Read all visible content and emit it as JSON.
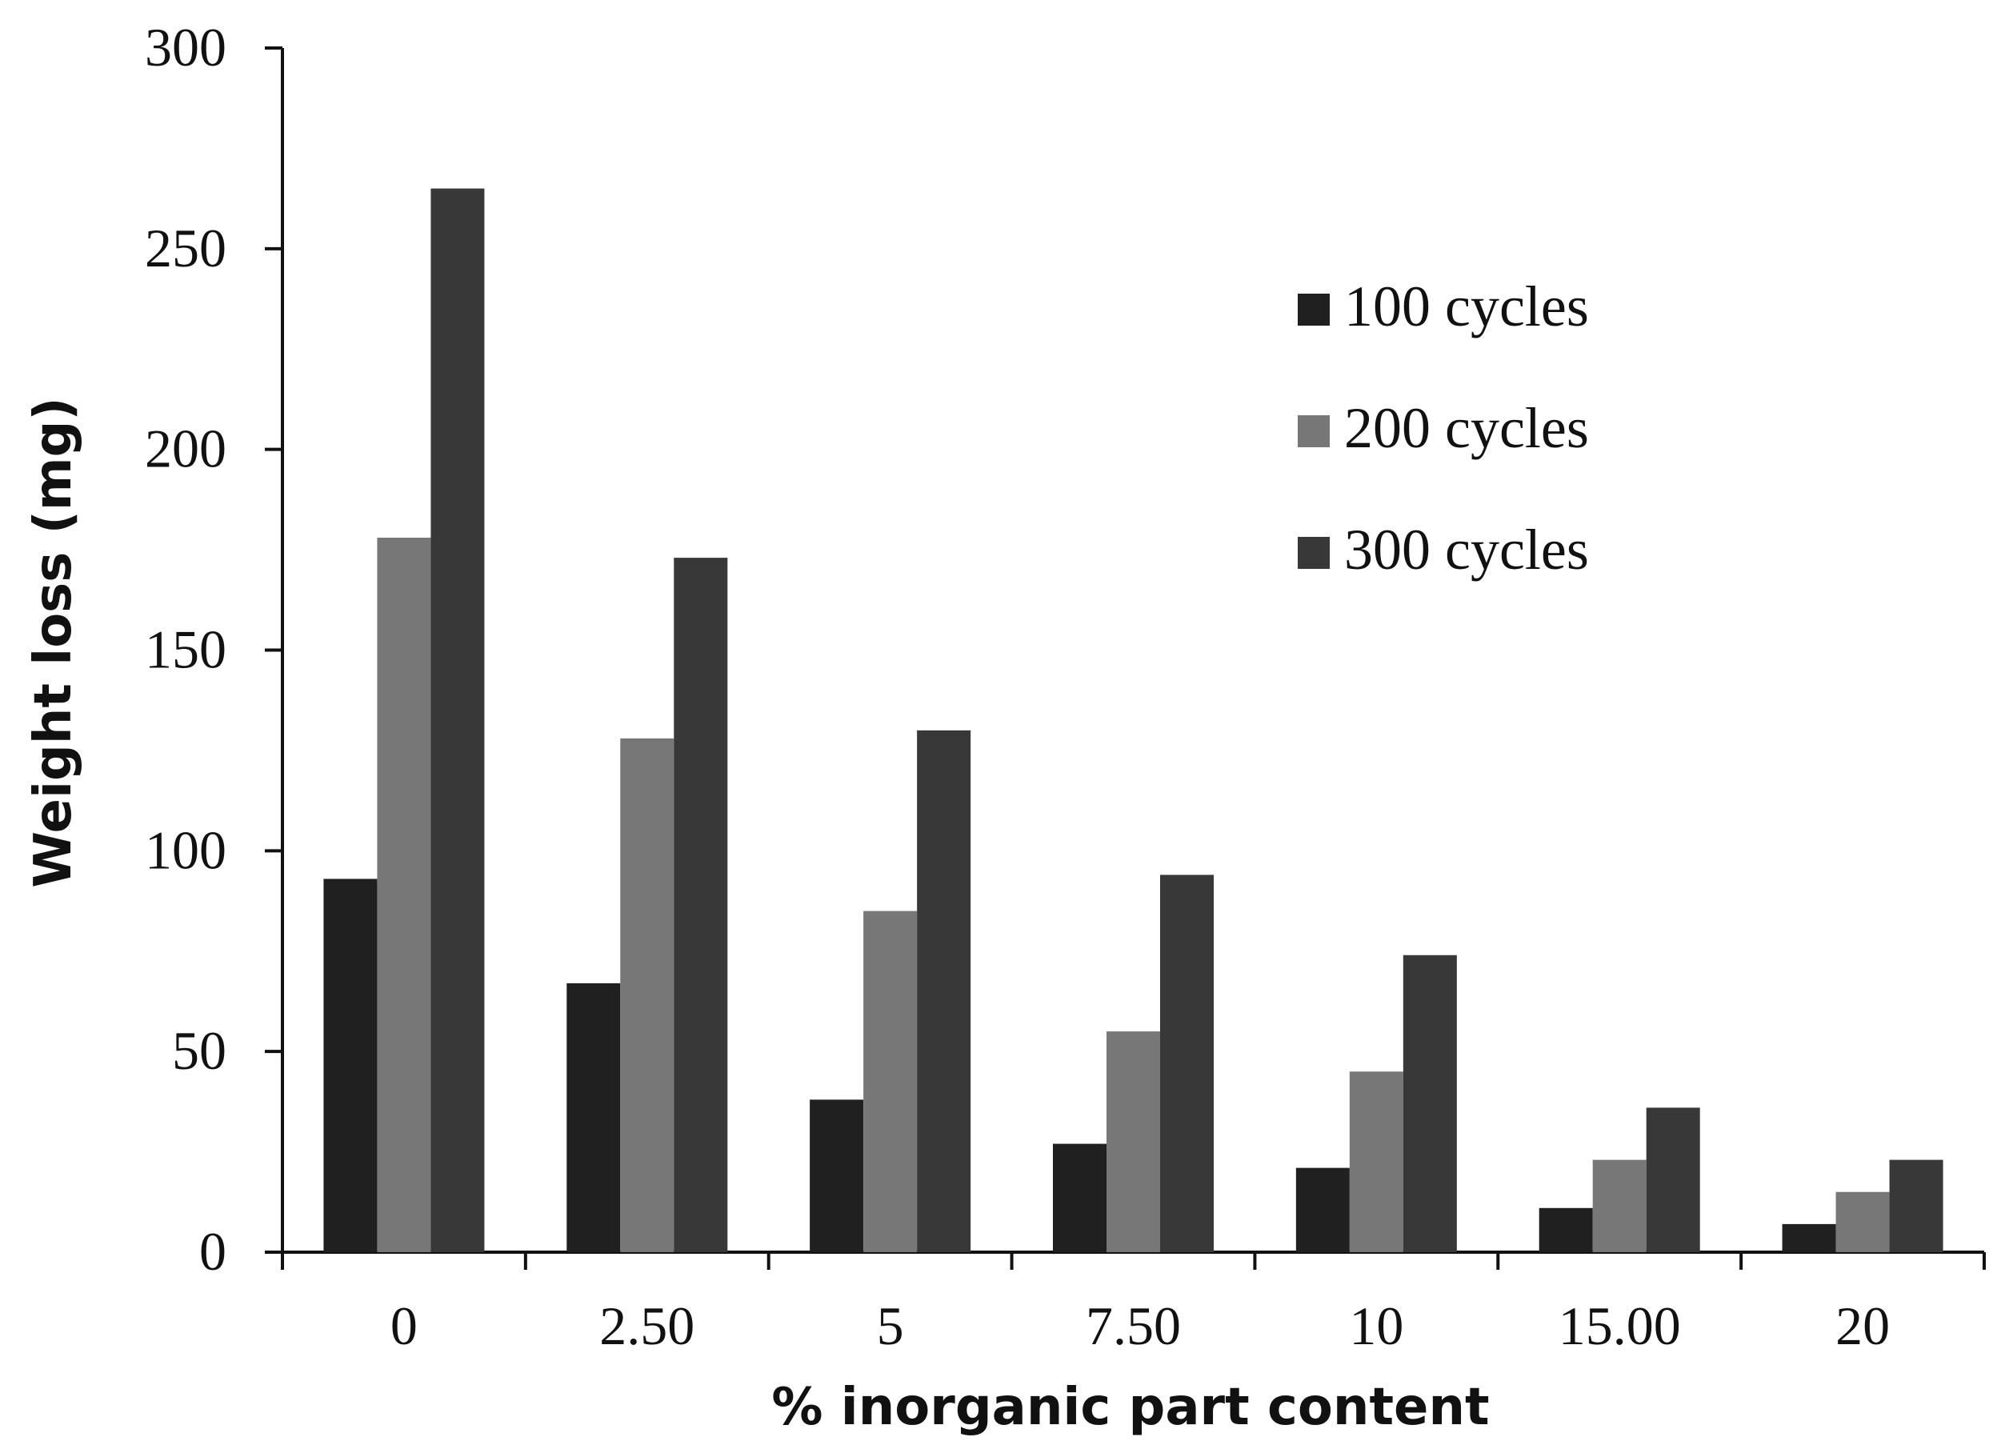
{
  "chart_data": {
    "type": "bar",
    "title": "",
    "xlabel": "% inorganic part content",
    "ylabel": "Weight loss (mg)",
    "categories": [
      "0",
      "2.50",
      "5",
      "7.50",
      "10",
      "15.00",
      "20"
    ],
    "y_ticks": [
      "0",
      "50",
      "100",
      "150",
      "200",
      "250",
      "300"
    ],
    "ylim": [
      0,
      300
    ],
    "grid": false,
    "legend_position": "top-right",
    "series": [
      {
        "name": "100 cycles",
        "color": "#202020",
        "values": [
          93,
          67,
          38,
          27,
          21,
          11,
          7
        ]
      },
      {
        "name": "200 cycles",
        "color": "#777777",
        "values": [
          178,
          128,
          85,
          55,
          45,
          23,
          15
        ]
      },
      {
        "name": "300 cycles",
        "color": "#383838",
        "values": [
          265,
          173,
          130,
          94,
          74,
          36,
          23
        ]
      }
    ]
  }
}
